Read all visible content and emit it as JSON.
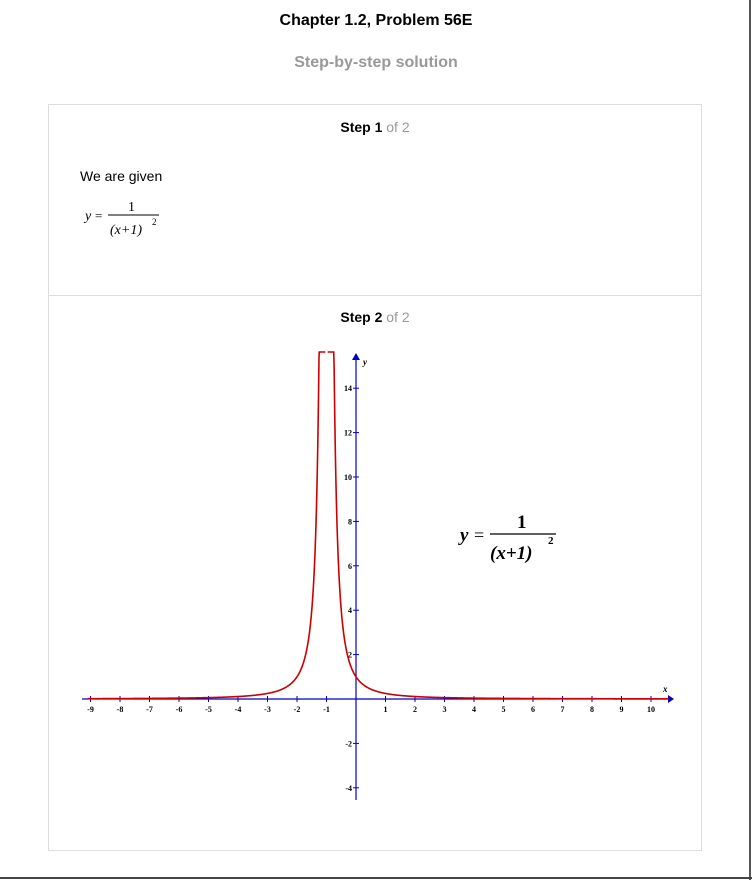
{
  "header": {
    "title": "Chapter 1.2, Problem 56E",
    "subtitle": "Step-by-step solution"
  },
  "steps": [
    {
      "number": "Step 1",
      "of": "of 2",
      "text": "We are given"
    },
    {
      "number": "Step 2",
      "of": "of 2"
    }
  ],
  "equation": {
    "lhs": "y",
    "eq": "=",
    "numerator": "1",
    "denominator": "(x+1)",
    "exponent": "2"
  },
  "chart_data": {
    "type": "line",
    "series": [
      {
        "name": "",
        "function": "1/(x+1)^2",
        "color": "#cc0000"
      }
    ],
    "xlabel": "x",
    "ylabel": "y",
    "xlim": [
      -9,
      10
    ],
    "ylim": [
      -4,
      15
    ],
    "x_ticks": [
      "-9",
      "-8",
      "-7",
      "-6",
      "-5",
      "-4",
      "-3",
      "-2",
      "-1",
      "1",
      "2",
      "3",
      "4",
      "5",
      "6",
      "7",
      "8",
      "9",
      "10"
    ],
    "y_ticks": [
      "-4",
      "-2",
      "2",
      "4",
      "6",
      "8",
      "10",
      "12",
      "14"
    ],
    "axis_color": "#0000cc",
    "curve_color": "#cc0000"
  }
}
